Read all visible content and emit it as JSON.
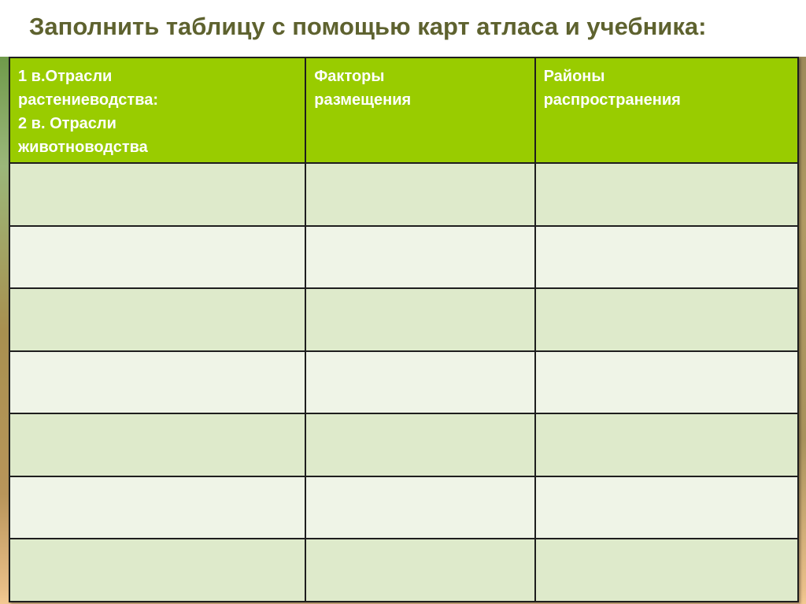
{
  "title": "Заполнить таблицу с помощью карт атласа и учебника:",
  "table": {
    "headers": [
      {
        "lines": [
          "1 в.Отрасли",
          "растениеводства:",
          "2 в. Отрасли",
          "животноводства"
        ]
      },
      {
        "lines": [
          "Факторы",
          "размещения"
        ]
      },
      {
        "lines": [
          "Районы",
          "распространения"
        ]
      }
    ],
    "row_count": 7
  },
  "colors": {
    "header": "#99cc00",
    "row_dark": "#deeacb",
    "row_light": "#eff4e7",
    "title": "#5e622f"
  }
}
